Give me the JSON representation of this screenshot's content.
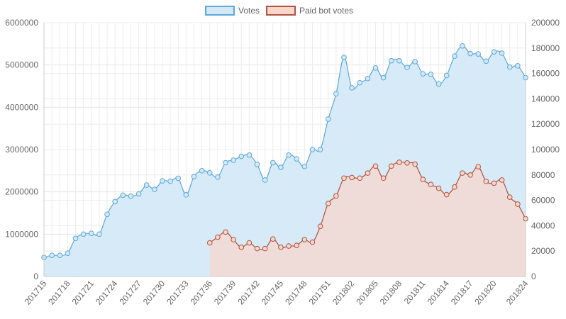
{
  "chart_data": {
    "type": "area",
    "legend": {
      "position": "top",
      "items": [
        {
          "label": "Votes",
          "color": "#5ba8d9",
          "fill": "#d4e9f8"
        },
        {
          "label": "Paid bot votes",
          "color": "#b0523f",
          "fill": "#f7d6cc"
        }
      ]
    },
    "grid": true,
    "x": [
      "201715",
      "201716",
      "201717",
      "201718",
      "201719",
      "201720",
      "201721",
      "201722",
      "201723",
      "201724",
      "201725",
      "201726",
      "201727",
      "201728",
      "201729",
      "201730",
      "201731",
      "201732",
      "201733",
      "201734",
      "201735",
      "201736",
      "201737",
      "201738",
      "201739",
      "201740",
      "201741",
      "201742",
      "201743",
      "201744",
      "201745",
      "201746",
      "201747",
      "201748",
      "201749",
      "201750",
      "201751",
      "201752",
      "201801",
      "201802",
      "201803",
      "201804",
      "201805",
      "201806",
      "201807",
      "201808",
      "201809",
      "201810",
      "201811",
      "201812",
      "201813",
      "201814",
      "201815",
      "201816",
      "201817",
      "201818",
      "201819",
      "201820",
      "201821",
      "201822",
      "201823",
      "201824"
    ],
    "x_tick_labels": [
      "201715",
      "201718",
      "201721",
      "201724",
      "201727",
      "201730",
      "201733",
      "201736",
      "201739",
      "201742",
      "201745",
      "201748",
      "201751",
      "201802",
      "201805",
      "201808",
      "201811",
      "201814",
      "201817",
      "201820",
      "201824"
    ],
    "y_left": {
      "min": 0,
      "max": 6000000,
      "ticks": [
        "0",
        "1000000",
        "2000000",
        "3000000",
        "4000000",
        "5000000",
        "6000000"
      ]
    },
    "y_right": {
      "min": 0,
      "max": 200000,
      "ticks": [
        "0",
        "20000",
        "40000",
        "60000",
        "80000",
        "100000",
        "120000",
        "140000",
        "160000",
        "180000",
        "200000"
      ]
    },
    "series": [
      {
        "name": "Votes",
        "axis": "left",
        "values": [
          450000,
          500000,
          500000,
          550000,
          900000,
          1000000,
          1020000,
          1000000,
          1470000,
          1770000,
          1920000,
          1900000,
          1950000,
          2160000,
          2060000,
          2260000,
          2250000,
          2320000,
          1930000,
          2360000,
          2500000,
          2450000,
          2350000,
          2690000,
          2750000,
          2840000,
          2870000,
          2650000,
          2280000,
          2690000,
          2580000,
          2870000,
          2780000,
          2600000,
          3000000,
          3000000,
          3720000,
          4320000,
          5180000,
          4460000,
          4580000,
          4680000,
          4930000,
          4700000,
          5100000,
          5100000,
          4940000,
          5080000,
          4790000,
          4780000,
          4550000,
          4750000,
          5210000,
          5450000,
          5270000,
          5260000,
          5090000,
          5310000,
          5280000,
          4950000,
          4980000,
          4700000
        ]
      },
      {
        "name": "Paid bot votes",
        "axis": "right",
        "values": [
          null,
          null,
          null,
          null,
          null,
          null,
          null,
          null,
          null,
          null,
          null,
          null,
          null,
          null,
          null,
          null,
          null,
          null,
          null,
          null,
          null,
          26500,
          31000,
          35000,
          29000,
          23000,
          26500,
          22000,
          22000,
          29500,
          23000,
          24000,
          24500,
          29000,
          27000,
          39500,
          57500,
          63500,
          77500,
          78000,
          77500,
          81500,
          87000,
          77500,
          87000,
          90000,
          89500,
          88500,
          76500,
          72500,
          69500,
          64500,
          70500,
          81500,
          80000,
          86500,
          75000,
          73500,
          76000,
          62500,
          57000,
          45500
        ]
      }
    ]
  }
}
